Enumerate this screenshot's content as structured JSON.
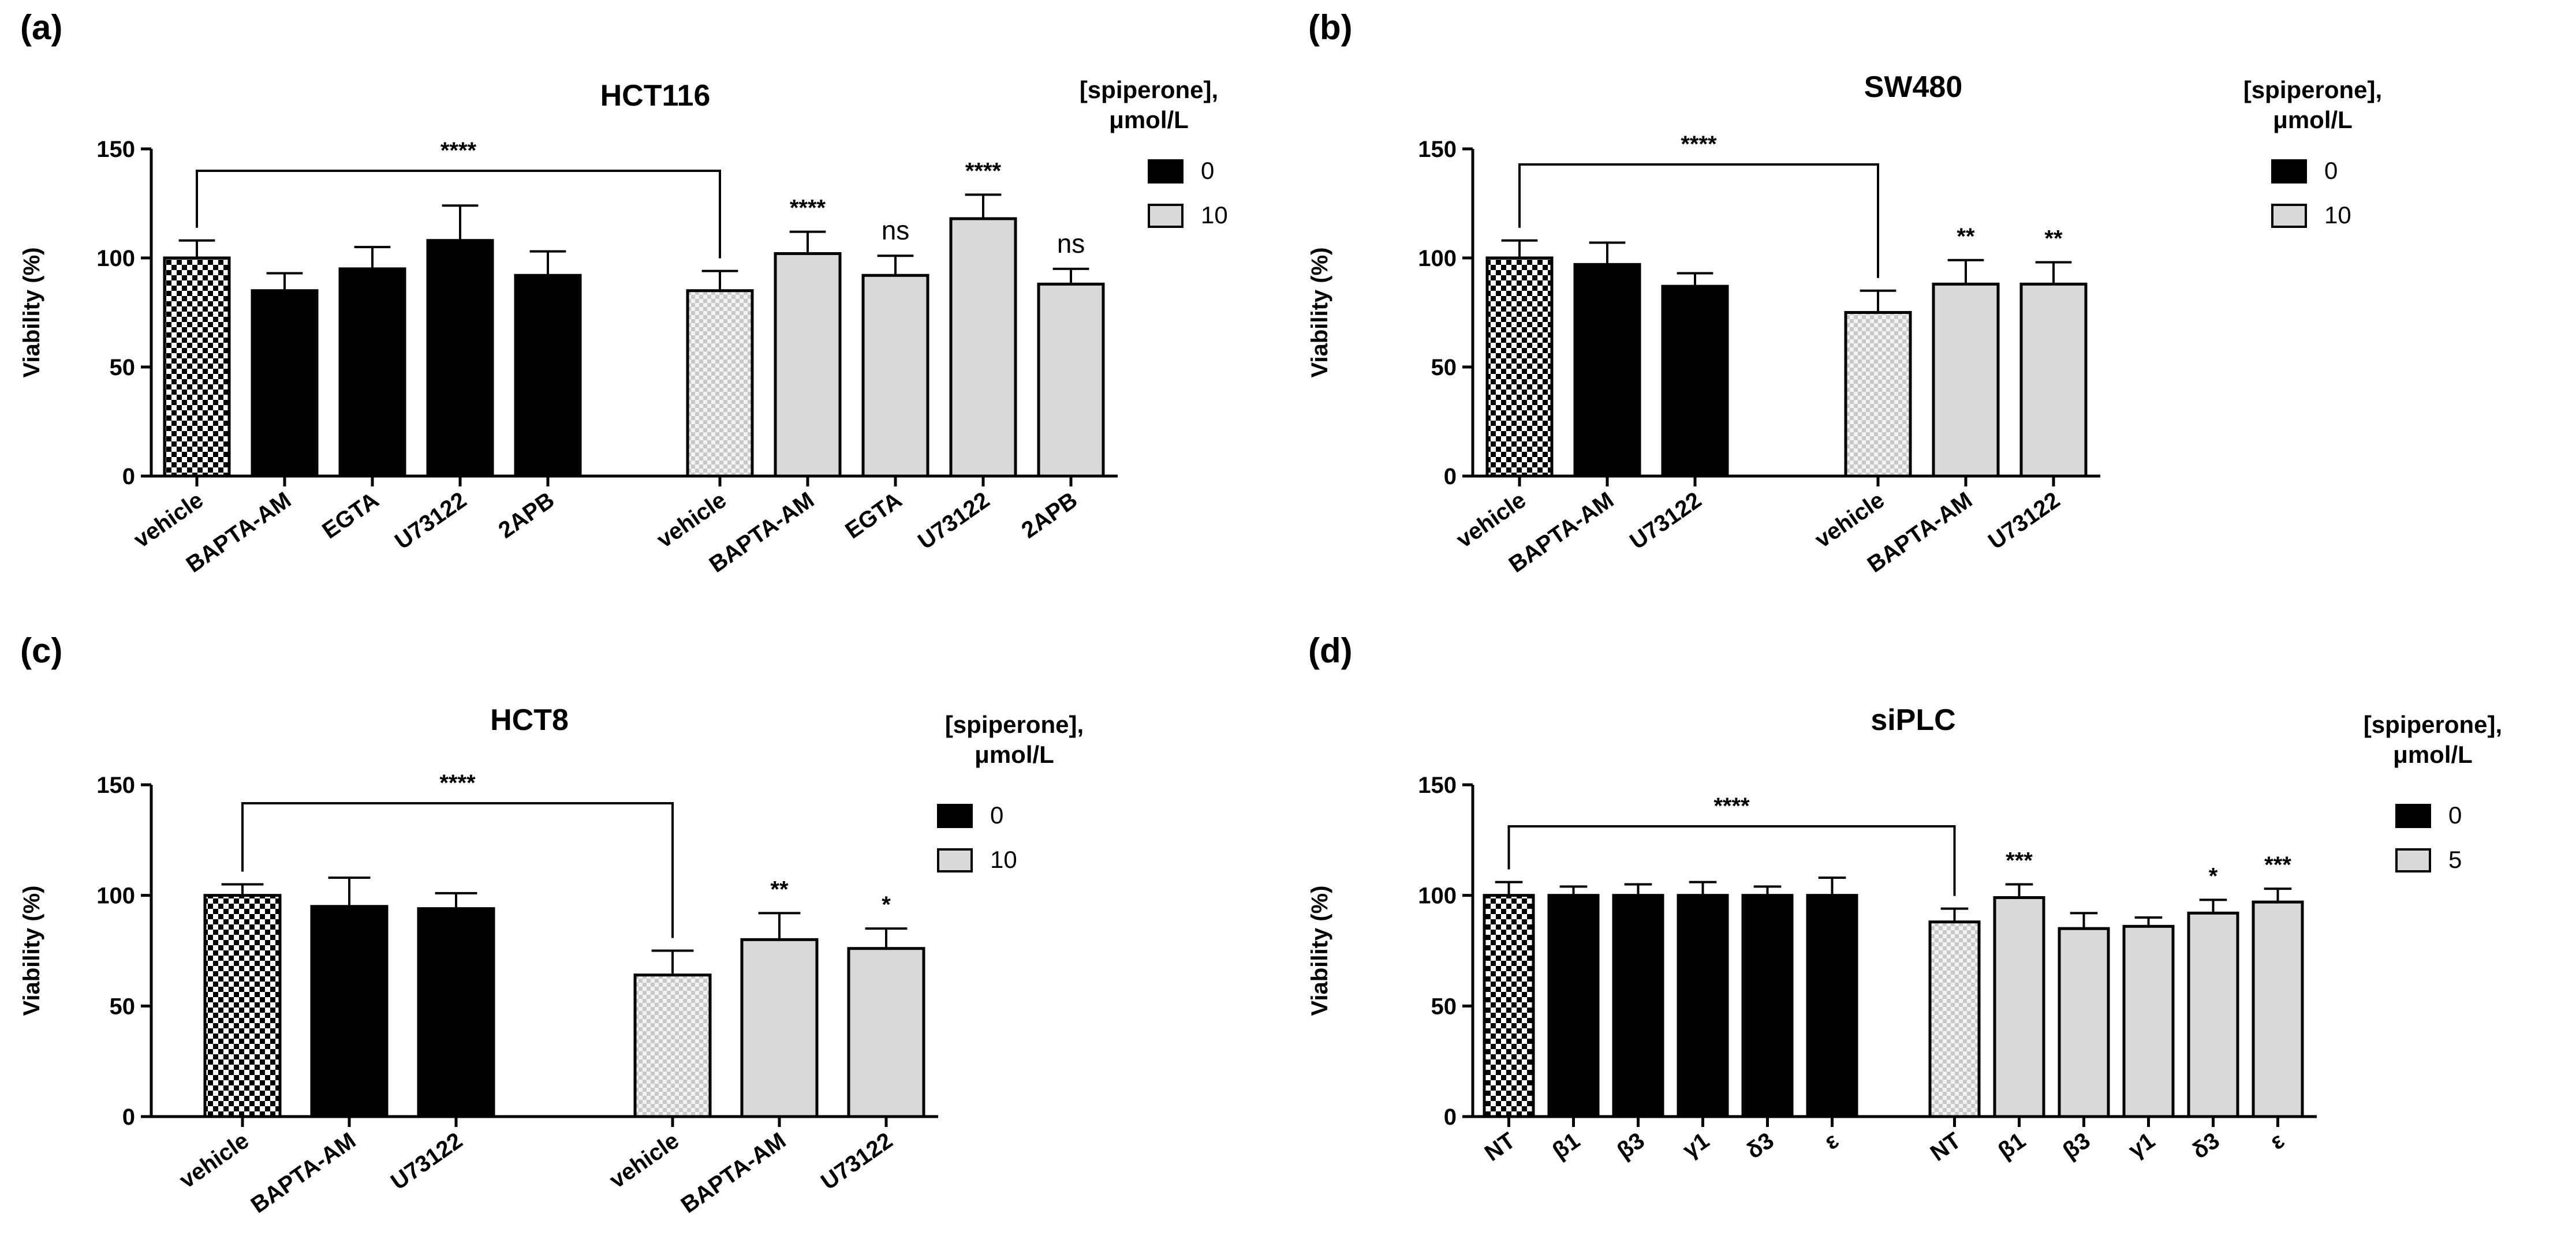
{
  "figure": {
    "legend_title_line1": "[spiperone],",
    "legend_title_line2": "μmol/L",
    "colors": {
      "control": "#000000",
      "treated": "#d9d9d9",
      "axis": "#000000"
    }
  },
  "chart_data": [
    {
      "panel_label": "(a)",
      "type": "bar",
      "title": "HCT116",
      "ylabel": "Viability (%)",
      "ylim": [
        0,
        150
      ],
      "yticks": [
        "0",
        "50",
        "100",
        "150"
      ],
      "legend": [
        {
          "label": "0",
          "color": "#000000"
        },
        {
          "label": "10",
          "color": "#d9d9d9"
        }
      ],
      "groups": [
        {
          "spiperone": "0",
          "categories": [
            "vehicle",
            "BAPTA-AM",
            "EGTA",
            "U73122",
            "2APB"
          ],
          "values": [
            100,
            85,
            95,
            108,
            92
          ],
          "errors": [
            8,
            8,
            10,
            16,
            11
          ],
          "sig": [
            "",
            "",
            "",
            "",
            ""
          ]
        },
        {
          "spiperone": "10",
          "categories": [
            "vehicle",
            "BAPTA-AM",
            "EGTA",
            "U73122",
            "2APB"
          ],
          "values": [
            85,
            102,
            92,
            118,
            88
          ],
          "errors": [
            9,
            10,
            9,
            11,
            7
          ],
          "sig": [
            "",
            "****",
            "ns",
            "****",
            "ns"
          ]
        }
      ],
      "bracket_label": "****"
    },
    {
      "panel_label": "(b)",
      "type": "bar",
      "title": "SW480",
      "ylabel": "Viability (%)",
      "ylim": [
        0,
        150
      ],
      "yticks": [
        "0",
        "50",
        "100",
        "150"
      ],
      "legend": [
        {
          "label": "0",
          "color": "#000000"
        },
        {
          "label": "10",
          "color": "#d9d9d9"
        }
      ],
      "groups": [
        {
          "spiperone": "0",
          "categories": [
            "vehicle",
            "BAPTA-AM",
            "U73122"
          ],
          "values": [
            100,
            97,
            87
          ],
          "errors": [
            8,
            10,
            6
          ],
          "sig": [
            "",
            "",
            ""
          ]
        },
        {
          "spiperone": "10",
          "categories": [
            "vehicle",
            "BAPTA-AM",
            "U73122"
          ],
          "values": [
            75,
            88,
            88
          ],
          "errors": [
            10,
            11,
            10
          ],
          "sig": [
            "",
            "**",
            "**"
          ]
        }
      ],
      "bracket_label": "****"
    },
    {
      "panel_label": "(c)",
      "type": "bar",
      "title": "HCT8",
      "ylabel": "Viability (%)",
      "ylim": [
        0,
        150
      ],
      "yticks": [
        "0",
        "50",
        "100",
        "150"
      ],
      "legend": [
        {
          "label": "0",
          "color": "#000000"
        },
        {
          "label": "10",
          "color": "#d9d9d9"
        }
      ],
      "groups": [
        {
          "spiperone": "0",
          "categories": [
            "vehicle",
            "BAPTA-AM",
            "U73122"
          ],
          "values": [
            100,
            95,
            94
          ],
          "errors": [
            5,
            13,
            7
          ],
          "sig": [
            "",
            "",
            ""
          ]
        },
        {
          "spiperone": "10",
          "categories": [
            "vehicle",
            "BAPTA-AM",
            "U73122"
          ],
          "values": [
            64,
            80,
            76
          ],
          "errors": [
            11,
            12,
            9
          ],
          "sig": [
            "",
            "**",
            "*"
          ]
        }
      ],
      "bracket_label": "****"
    },
    {
      "panel_label": "(d)",
      "type": "bar",
      "title": "siPLC",
      "ylabel": "Viability (%)",
      "ylim": [
        0,
        150
      ],
      "yticks": [
        "0",
        "50",
        "100",
        "150"
      ],
      "legend": [
        {
          "label": "0",
          "color": "#000000"
        },
        {
          "label": "5",
          "color": "#d9d9d9"
        }
      ],
      "groups": [
        {
          "spiperone": "0",
          "categories": [
            "NT",
            "β1",
            "β3",
            "γ1",
            "δ3",
            "ε"
          ],
          "values": [
            100,
            100,
            100,
            100,
            100,
            100
          ],
          "errors": [
            6,
            4,
            5,
            6,
            4,
            8
          ],
          "sig": [
            "",
            "",
            "",
            "",
            "",
            ""
          ]
        },
        {
          "spiperone": "5",
          "categories": [
            "NT",
            "β1",
            "β3",
            "γ1",
            "δ3",
            "ε"
          ],
          "values": [
            88,
            99,
            85,
            86,
            92,
            97
          ],
          "errors": [
            6,
            6,
            7,
            4,
            6,
            6
          ],
          "sig": [
            "",
            "***",
            "",
            "",
            "*",
            "***"
          ]
        }
      ],
      "bracket_label": "****"
    }
  ]
}
